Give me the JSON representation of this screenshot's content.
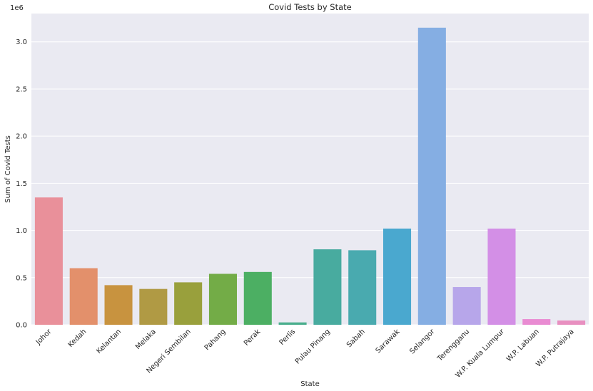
{
  "chart_data": {
    "type": "bar",
    "title": "Covid Tests by State",
    "xlabel": "State",
    "ylabel": "Sum of Covid Tests",
    "y_offset_label": "1e6",
    "ylim": [
      0,
      3.3
    ],
    "y_ticks": [
      0.0,
      0.5,
      1.0,
      1.5,
      2.0,
      2.5,
      3.0
    ],
    "y_tick_labels": [
      "0.0",
      "0.5",
      "1.0",
      "1.5",
      "2.0",
      "2.5",
      "3.0"
    ],
    "grid": true,
    "categories": [
      "Johor",
      "Kedah",
      "Kelantan",
      "Melaka",
      "Negeri Sembilan",
      "Pahang",
      "Perak",
      "Perlis",
      "Pulau Pinang",
      "Sabah",
      "Sarawak",
      "Selangor",
      "Terengganu",
      "W.P. Kuala Lumpur",
      "W.P. Labuan",
      "W.P. Putrajaya"
    ],
    "values": [
      1.35,
      0.6,
      0.42,
      0.38,
      0.45,
      0.54,
      0.56,
      0.025,
      0.8,
      0.79,
      1.02,
      3.15,
      0.4,
      1.02,
      0.06,
      0.045
    ],
    "colors": [
      "#e9909a",
      "#e3906b",
      "#c8933f",
      "#b09a44",
      "#99a03c",
      "#73ac47",
      "#4caf63",
      "#4aae8d",
      "#48ab9f",
      "#49aaaf",
      "#4aa8cf",
      "#85aee3",
      "#b7a6ea",
      "#d38fe6",
      "#e98bd2",
      "#e88fc0"
    ]
  }
}
